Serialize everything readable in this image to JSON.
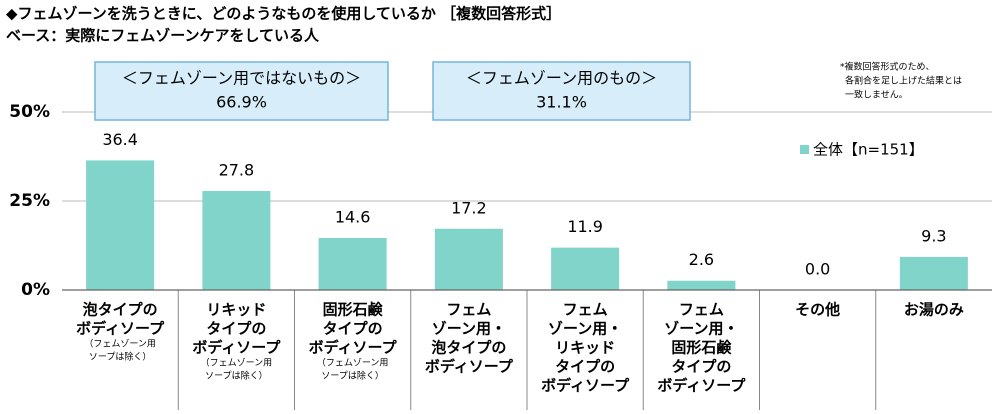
{
  "chart_data": {
    "type": "bar",
    "title": "◆フェムゾーンを洗うときに、どのようなものを使用しているか ［複数回答形式］",
    "subtitle": "ベース：実際にフェムゾーンケアをしている人",
    "note": [
      "*複数回答形式のため、",
      "各割合を足し上げた結果とは",
      "一致しません。"
    ],
    "groups": [
      {
        "label": "＜フェムゾーン用ではないもの＞",
        "total": "66.9%"
      },
      {
        "label": "＜フェムゾーン用のもの＞",
        "total": "31.1%"
      }
    ],
    "categories": [
      [
        "泡タイプの",
        "ボディソープ"
      ],
      [
        "リキッド",
        "タイプの",
        "ボディソープ"
      ],
      [
        "固形石鹸",
        "タイプの",
        "ボディソープ"
      ],
      [
        "フェム",
        "ゾーン用・",
        "泡タイプの",
        "ボディソープ"
      ],
      [
        "フェム",
        "ゾーン用・",
        "リキッド",
        "タイプの",
        "ボディソープ"
      ],
      [
        "フェム",
        "ゾーン用・",
        "固形石鹸",
        "タイプの",
        "ボディソープ"
      ],
      [
        "その他"
      ],
      [
        "お湯のみ"
      ]
    ],
    "category_notes": [
      [
        "（フェムゾーン用",
        "ソープは除く）"
      ],
      [
        "（フェムゾーン用",
        "ソープは除く）"
      ],
      [
        "（フェムゾーン用",
        "ソープは除く）"
      ],
      null,
      null,
      null,
      null,
      null
    ],
    "series": [
      {
        "name": "全体【n=151】",
        "color": "#80d4c9",
        "values": [
          36.4,
          27.8,
          14.6,
          17.2,
          11.9,
          2.6,
          0.0,
          9.3
        ],
        "value_labels": [
          "36.4",
          "27.8",
          "14.6",
          "17.2",
          "11.9",
          "2.6",
          "0.0",
          "9.3"
        ]
      }
    ],
    "ylim": [
      0,
      50
    ],
    "yticks": [
      {
        "value": 0,
        "label": "0%"
      },
      {
        "value": 25,
        "label": "25%"
      },
      {
        "value": 50,
        "label": "50%"
      }
    ]
  }
}
